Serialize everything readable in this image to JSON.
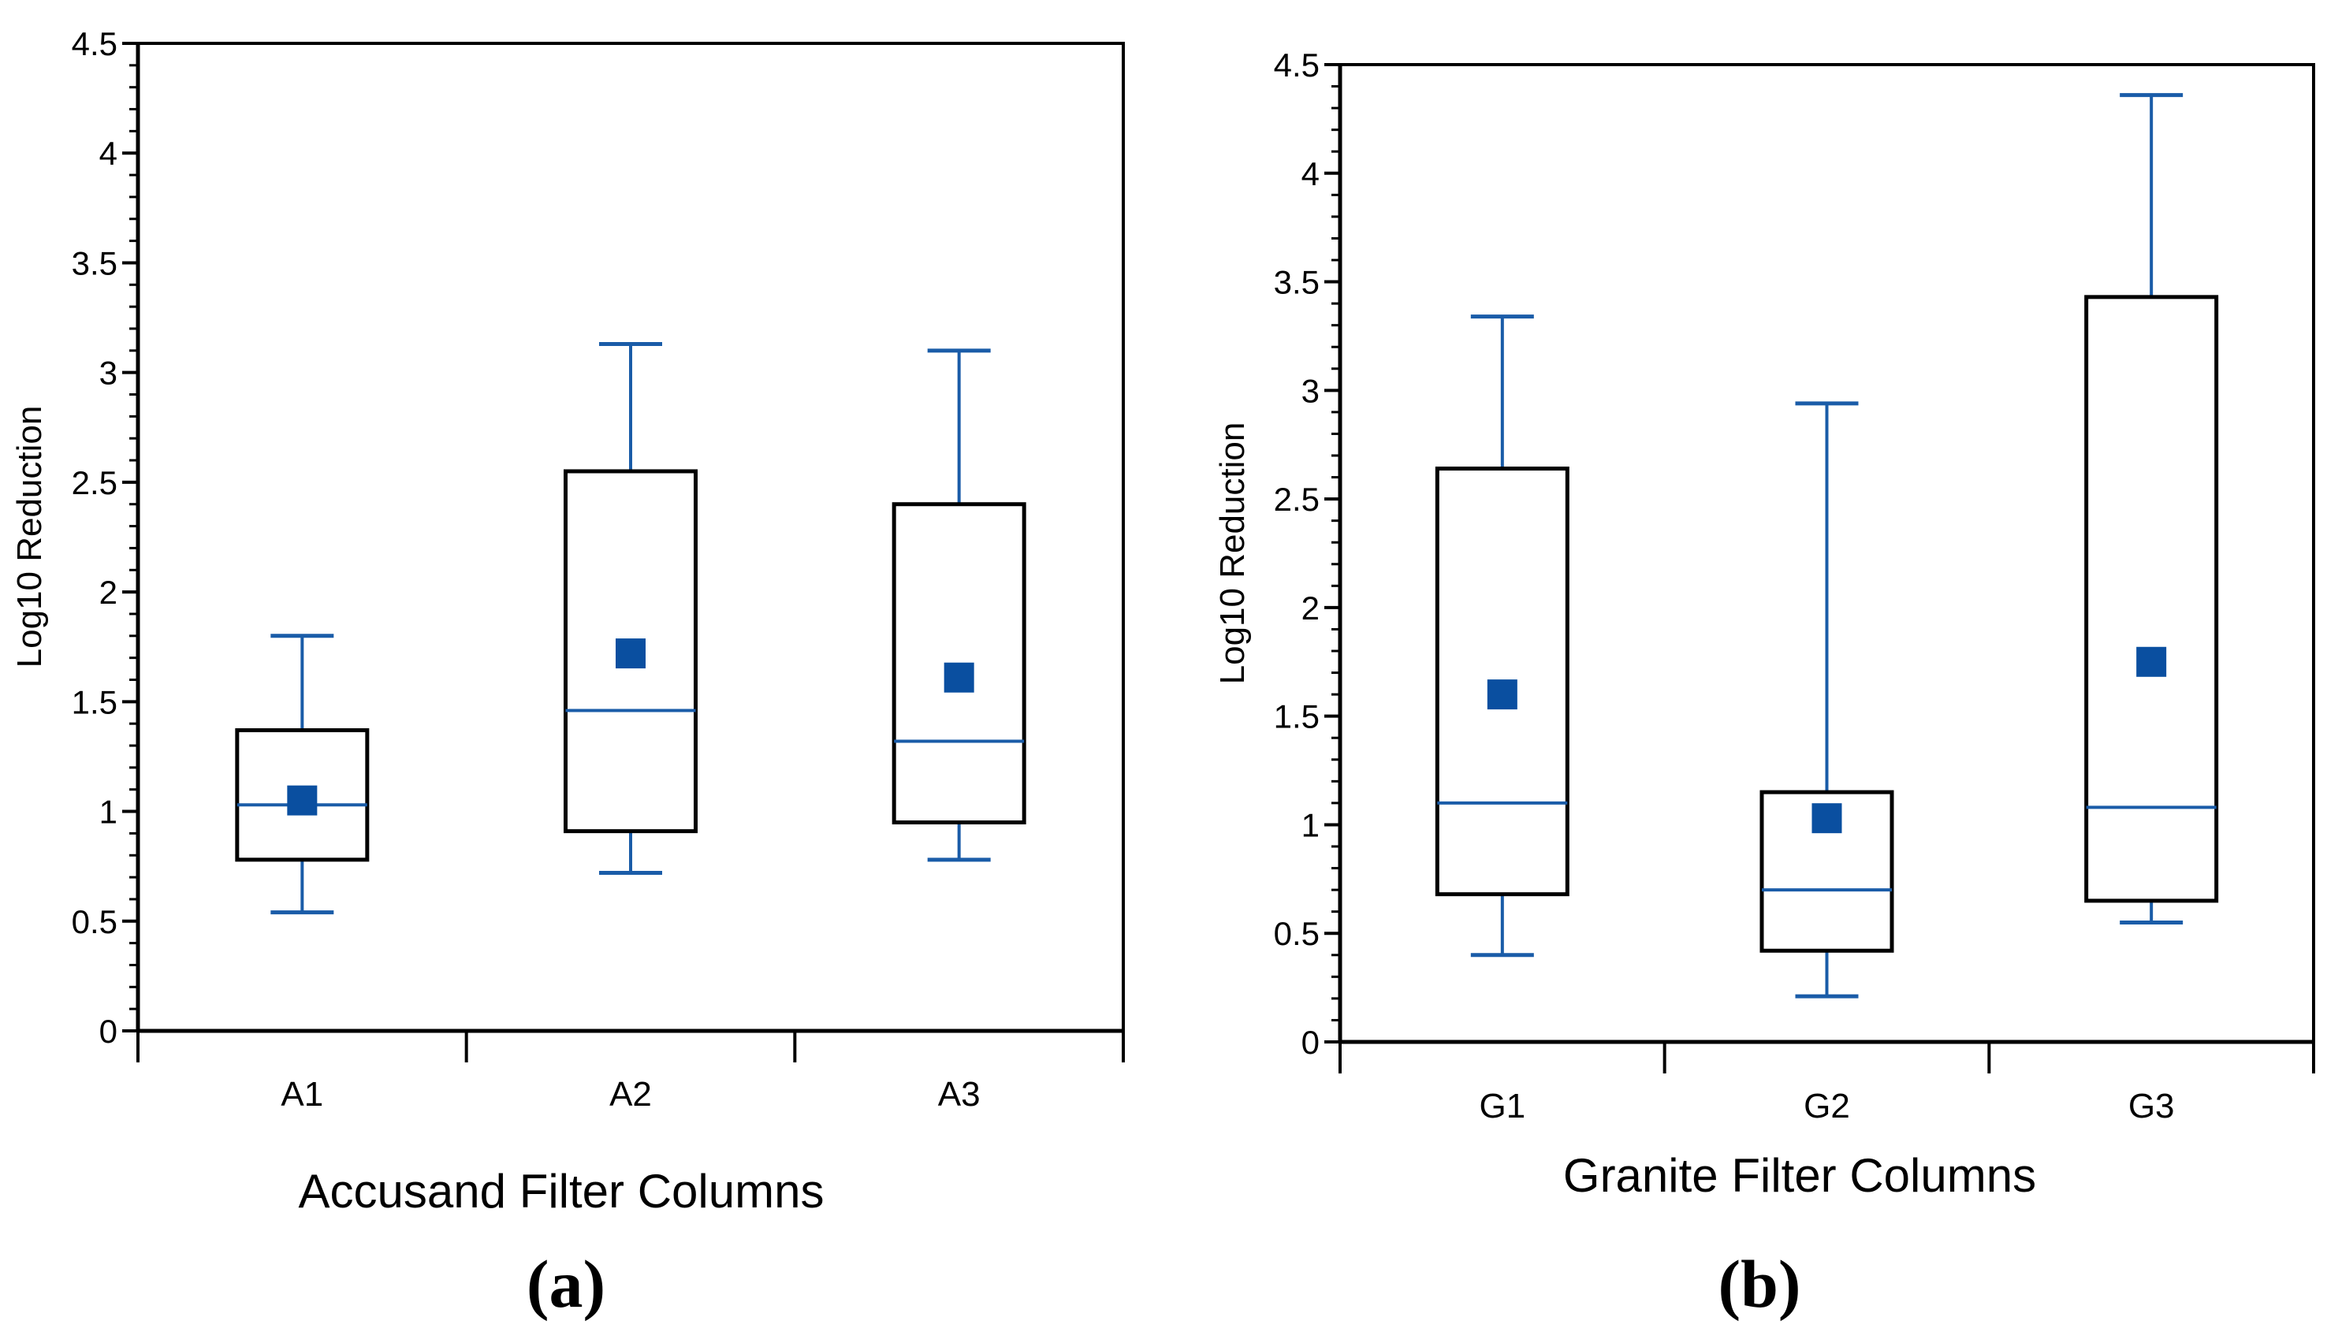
{
  "chart_data": [
    {
      "type": "box",
      "panel_label": "(a)",
      "title": "",
      "xlabel": "Accusand Filter Columns",
      "ylabel": "Log10 Reduction",
      "ylim": [
        0,
        4.5
      ],
      "ytick_values": [
        0,
        0.5,
        1,
        1.5,
        2,
        2.5,
        3,
        3.5,
        4,
        4.5
      ],
      "ytick_labels": [
        "0",
        "0.5",
        "1",
        "1.5",
        "2",
        "2.5",
        "3",
        "3.5",
        "4",
        "4.5"
      ],
      "categories": [
        "A1",
        "A2",
        "A3"
      ],
      "boxes": [
        {
          "name": "A1",
          "min": 0.54,
          "q1": 0.78,
          "median": 1.03,
          "q3": 1.37,
          "max": 1.8,
          "mean": 1.05
        },
        {
          "name": "A2",
          "min": 0.72,
          "q1": 0.91,
          "median": 1.46,
          "q3": 2.55,
          "max": 3.13,
          "mean": 1.72
        },
        {
          "name": "A3",
          "min": 0.78,
          "q1": 0.95,
          "median": 1.32,
          "q3": 2.4,
          "max": 3.1,
          "mean": 1.61
        }
      ],
      "grid": false
    },
    {
      "type": "box",
      "panel_label": "(b)",
      "title": "",
      "xlabel": "Granite Filter Columns",
      "ylabel": "Log10 Reduction",
      "ylim": [
        0,
        4.5
      ],
      "ytick_values": [
        0,
        0.5,
        1,
        1.5,
        2,
        2.5,
        3,
        3.5,
        4,
        4.5
      ],
      "ytick_labels": [
        "0",
        "0.5",
        "1",
        "1.5",
        "2",
        "2.5",
        "3",
        "3.5",
        "4",
        "4.5"
      ],
      "categories": [
        "G1",
        "G2",
        "G3"
      ],
      "boxes": [
        {
          "name": "G1",
          "min": 0.4,
          "q1": 0.68,
          "median": 1.1,
          "q3": 2.64,
          "max": 3.34,
          "mean": 1.6
        },
        {
          "name": "G2",
          "min": 0.21,
          "q1": 0.42,
          "median": 0.7,
          "q3": 1.15,
          "max": 2.94,
          "mean": 1.03
        },
        {
          "name": "G3",
          "min": 0.55,
          "q1": 0.65,
          "median": 1.08,
          "q3": 3.43,
          "max": 4.36,
          "mean": 1.75
        }
      ],
      "grid": false
    }
  ],
  "colors": {
    "box_outline": "#000000",
    "whisker": "#1a5ca8",
    "median": "#1a5ca8",
    "mean_marker": "#0a4fa0",
    "axis": "#000000"
  }
}
